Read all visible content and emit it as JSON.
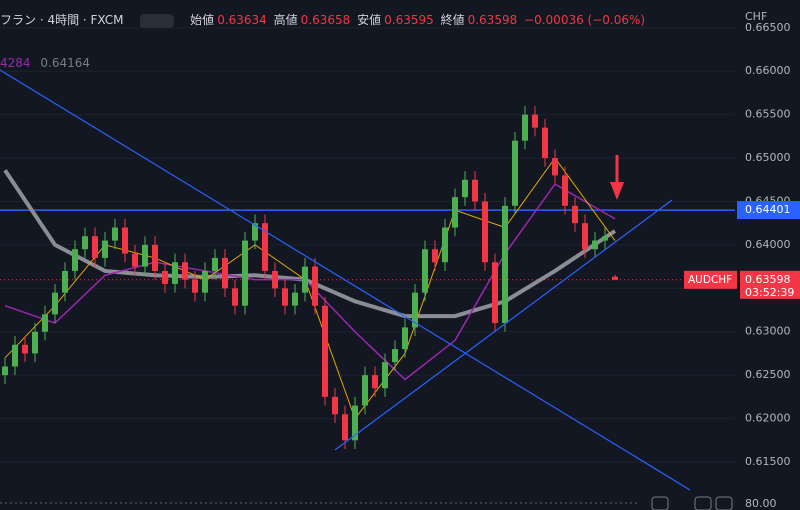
{
  "header": {
    "symbol": "フラン · 4時間 · FXCM",
    "open_label": "始値",
    "high_label": "高値",
    "low_label": "安値",
    "close_label": "終値",
    "change": "−0.00036 (−0.06%)",
    "indicator_values": [
      "4284",
      "0.64164"
    ]
  },
  "axis_currency": "CHF",
  "volume_axis_label": "80.00",
  "chart_data": {
    "type": "candlestick",
    "symbol_label": "AUDCHF",
    "countdown": "03:52:39",
    "up_color": "#4caf50",
    "down_color": "#f23645",
    "xlim": [
      -0.5,
      73
    ],
    "ylim": [
      0.6112,
      0.6682
    ],
    "yticks": [
      {
        "value": 0.615,
        "label": "0.61500"
      },
      {
        "value": 0.62,
        "label": "0.62000"
      },
      {
        "value": 0.625,
        "label": "0.62500"
      },
      {
        "value": 0.63,
        "label": "0.63000"
      },
      {
        "value": 0.635,
        "label": "0.63500"
      },
      {
        "value": 0.64,
        "label": "0.64000"
      },
      {
        "value": 0.645,
        "label": "0.64500"
      },
      {
        "value": 0.65,
        "label": "0.65000"
      },
      {
        "value": 0.655,
        "label": "0.65500"
      },
      {
        "value": 0.66,
        "label": "0.66000"
      },
      {
        "value": 0.665,
        "label": "0.66500"
      }
    ],
    "open": [
      0.625,
      0.626,
      0.6285,
      0.6275,
      0.63,
      0.632,
      0.6345,
      0.637,
      0.6395,
      0.641,
      0.6385,
      0.6405,
      0.642,
      0.639,
      0.6375,
      0.64,
      0.637,
      0.6355,
      0.638,
      0.636,
      0.6345,
      0.637,
      0.6385,
      0.635,
      0.633,
      0.6405,
      0.6425,
      0.637,
      0.635,
      0.633,
      0.6345,
      0.6375,
      0.633,
      0.6225,
      0.6205,
      0.6175,
      0.6215,
      0.625,
      0.6235,
      0.6265,
      0.628,
      0.6305,
      0.6345,
      0.6395,
      0.638,
      0.642,
      0.6455,
      0.6475,
      0.645,
      0.638,
      0.631,
      0.6445,
      0.652,
      0.655,
      0.6535,
      0.65,
      0.648,
      0.6445,
      0.6425,
      0.6395,
      0.6405,
      0.63634
    ],
    "high": [
      0.627,
      0.6295,
      0.6295,
      0.631,
      0.633,
      0.6355,
      0.638,
      0.6405,
      0.642,
      0.642,
      0.6415,
      0.643,
      0.643,
      0.64,
      0.641,
      0.641,
      0.638,
      0.639,
      0.639,
      0.637,
      0.638,
      0.6395,
      0.6395,
      0.636,
      0.6415,
      0.6435,
      0.6435,
      0.638,
      0.636,
      0.6355,
      0.6385,
      0.6385,
      0.634,
      0.6235,
      0.6215,
      0.6225,
      0.626,
      0.626,
      0.6275,
      0.629,
      0.6315,
      0.6355,
      0.6405,
      0.6405,
      0.643,
      0.6465,
      0.6485,
      0.6485,
      0.646,
      0.639,
      0.6455,
      0.653,
      0.656,
      0.656,
      0.6545,
      0.651,
      0.649,
      0.6455,
      0.6435,
      0.6415,
      0.642,
      0.63658
    ],
    "low": [
      0.624,
      0.625,
      0.6265,
      0.6265,
      0.629,
      0.631,
      0.6335,
      0.636,
      0.6385,
      0.6375,
      0.6375,
      0.6395,
      0.638,
      0.6365,
      0.6365,
      0.636,
      0.6345,
      0.6345,
      0.635,
      0.6335,
      0.6335,
      0.636,
      0.634,
      0.632,
      0.632,
      0.6395,
      0.636,
      0.634,
      0.632,
      0.632,
      0.6335,
      0.632,
      0.6215,
      0.6195,
      0.6165,
      0.6165,
      0.6205,
      0.6225,
      0.6225,
      0.6255,
      0.627,
      0.6295,
      0.6335,
      0.637,
      0.637,
      0.641,
      0.6445,
      0.644,
      0.637,
      0.63,
      0.63,
      0.6435,
      0.651,
      0.6525,
      0.649,
      0.647,
      0.6435,
      0.6415,
      0.6385,
      0.6385,
      0.6395,
      0.63595
    ],
    "close": [
      0.626,
      0.6285,
      0.6275,
      0.63,
      0.632,
      0.6345,
      0.637,
      0.6395,
      0.641,
      0.6385,
      0.6405,
      0.642,
      0.639,
      0.6375,
      0.64,
      0.637,
      0.6355,
      0.638,
      0.636,
      0.6345,
      0.637,
      0.6385,
      0.635,
      0.633,
      0.6405,
      0.6425,
      0.637,
      0.635,
      0.633,
      0.6345,
      0.6375,
      0.633,
      0.6225,
      0.6205,
      0.6175,
      0.6215,
      0.625,
      0.6235,
      0.6265,
      0.628,
      0.6305,
      0.6345,
      0.6395,
      0.638,
      0.642,
      0.6455,
      0.6475,
      0.645,
      0.638,
      0.631,
      0.6445,
      0.652,
      0.655,
      0.6535,
      0.65,
      0.648,
      0.6445,
      0.6425,
      0.6395,
      0.6405,
      0.641,
      0.63598
    ],
    "series": [
      {
        "color": "#8a8d96",
        "width": 4,
        "x": [
          0,
          5,
          10,
          15,
          20,
          25,
          30,
          35,
          40,
          45,
          50,
          55,
          61
        ],
        "values": [
          0.6486,
          0.64,
          0.637,
          0.6365,
          0.6363,
          0.6365,
          0.636,
          0.6335,
          0.6318,
          0.6318,
          0.6335,
          0.637,
          0.6416
        ]
      },
      {
        "color": "#9c27b0",
        "width": 1.5,
        "x": [
          0,
          5,
          10,
          15,
          20,
          25,
          30,
          35,
          40,
          45,
          50,
          55,
          61
        ],
        "values": [
          0.633,
          0.631,
          0.6365,
          0.638,
          0.637,
          0.636,
          0.636,
          0.63,
          0.6245,
          0.629,
          0.639,
          0.647,
          0.643
        ]
      },
      {
        "color": "#e0a800",
        "width": 1,
        "x": [
          0,
          5,
          10,
          15,
          20,
          25,
          30,
          35,
          40,
          45,
          50,
          55,
          61
        ],
        "values": [
          0.627,
          0.633,
          0.64,
          0.6385,
          0.636,
          0.64,
          0.636,
          0.62,
          0.6275,
          0.644,
          0.642,
          0.65,
          0.6405
        ]
      }
    ],
    "trendlines": [
      {
        "color": "#2962ff",
        "x": [
          -0.5,
          68.5
        ],
        "values": [
          0.66014,
          0.61178
        ]
      },
      {
        "color": "#2962ff",
        "x": [
          33,
          66.7
        ],
        "values": [
          0.61638,
          0.64517
        ]
      }
    ],
    "hline": {
      "value": 0.64401,
      "color": "#2962ff"
    },
    "grid": true
  }
}
